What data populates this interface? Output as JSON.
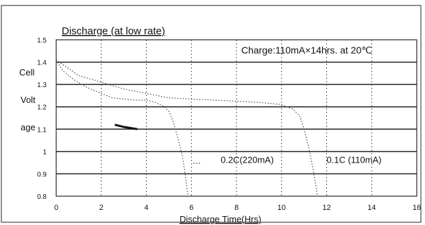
{
  "chart_data": {
    "type": "line",
    "title": "Discharge (at low rate)",
    "condition": "Charge:110mA×14hrs. at 20℃",
    "ylabel_parts": [
      "Cell",
      "Volt",
      "age"
    ],
    "xlabel": "Discharge Time(Hrs)",
    "xlim": [
      0,
      16
    ],
    "ylim": [
      0.8,
      1.5
    ],
    "x_ticks": [
      0,
      2,
      4,
      6,
      8,
      10,
      12,
      14,
      16
    ],
    "y_ticks": [
      {
        "value": 0.8,
        "label": "0.8"
      },
      {
        "value": 0.9,
        "label": "0.9"
      },
      {
        "value": 1.0,
        "label": "1"
      },
      {
        "value": 1.1,
        "label": "1.1"
      },
      {
        "value": 1.2,
        "label": "1.2"
      },
      {
        "value": 1.3,
        "label": "1.3"
      },
      {
        "value": 1.4,
        "label": "1.4"
      },
      {
        "value": 1.5,
        "label": "1.5"
      }
    ],
    "grid": true,
    "series": [
      {
        "name": "0.2C(220mA)",
        "x": [
          0,
          0.3,
          0.8,
          1.3,
          2.0,
          2.5,
          3.0,
          3.5,
          4.0,
          4.4,
          4.8,
          5.0,
          5.2,
          5.4,
          5.6,
          5.75,
          5.85
        ],
        "y": [
          1.41,
          1.36,
          1.32,
          1.29,
          1.26,
          1.24,
          1.235,
          1.23,
          1.23,
          1.22,
          1.2,
          1.18,
          1.13,
          1.06,
          0.98,
          0.88,
          0.8
        ]
      },
      {
        "name": "0.1C (110mA)",
        "x": [
          0,
          1,
          2,
          3,
          4,
          5,
          6,
          7,
          8,
          9,
          9.5,
          10,
          10.5,
          10.8,
          11.0,
          11.2,
          11.4,
          11.6
        ],
        "y": [
          1.41,
          1.34,
          1.31,
          1.28,
          1.26,
          1.24,
          1.235,
          1.23,
          1.225,
          1.22,
          1.215,
          1.21,
          1.19,
          1.16,
          1.1,
          1.02,
          0.92,
          0.8
        ]
      }
    ],
    "series_labels": [
      {
        "text": "0.2C(220mA)",
        "x": 7.3,
        "y": 0.93
      },
      {
        "text": "0.1C (110mA)",
        "x": 12.0,
        "y": 0.93
      }
    ]
  }
}
